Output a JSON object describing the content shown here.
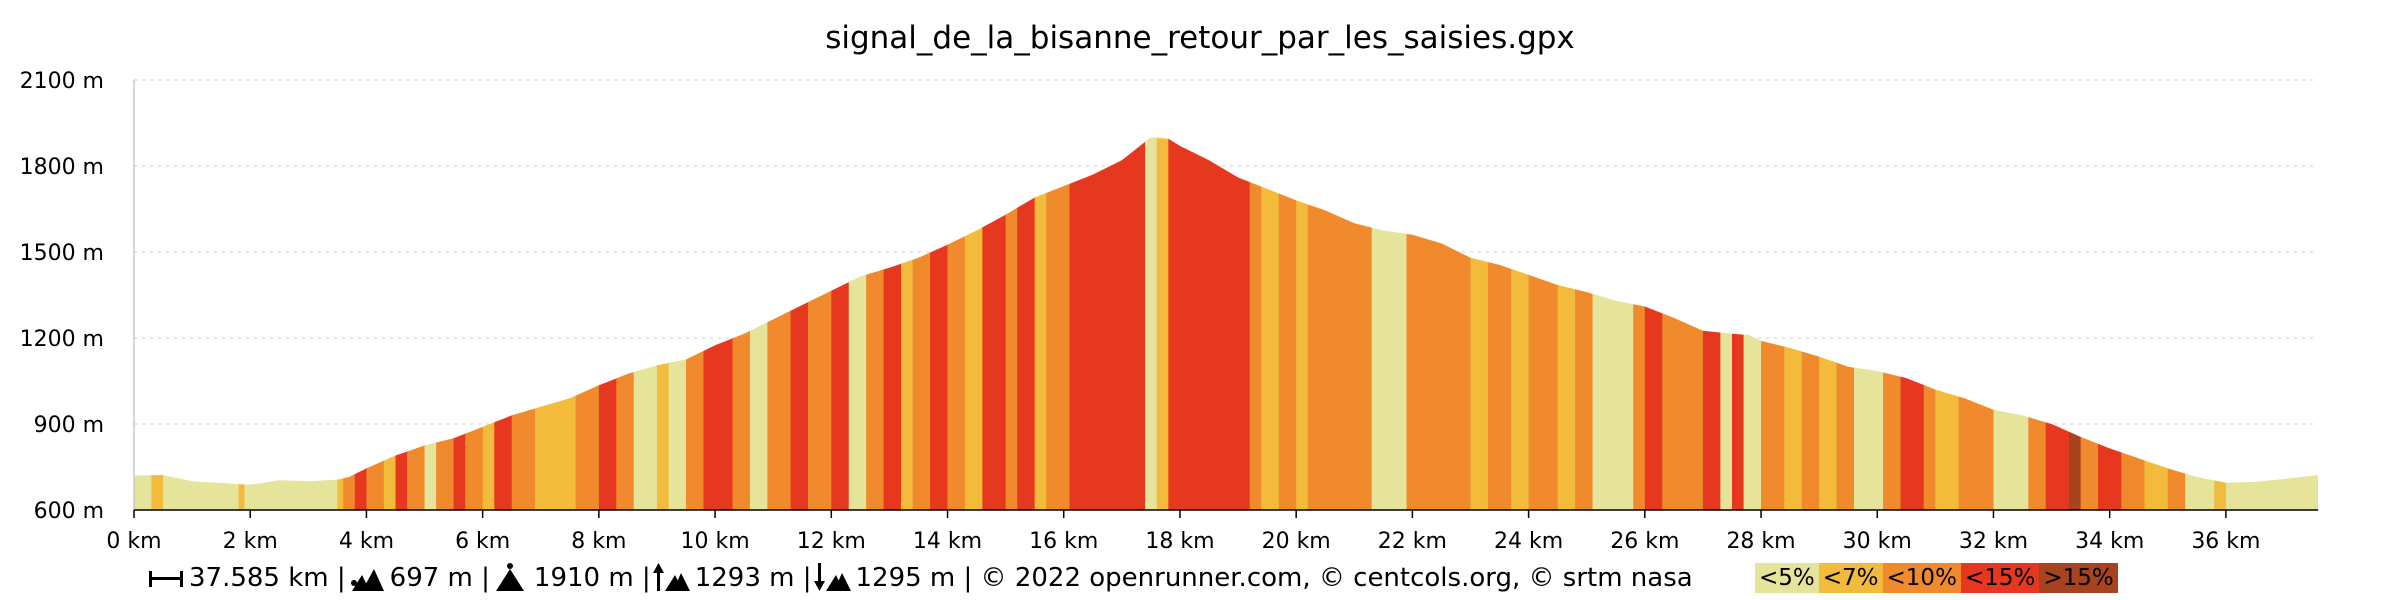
{
  "chart_data": {
    "type": "area",
    "title": "signal_de_la_bisanne_retour_par_les_saisies.gpx",
    "xlabel": "",
    "ylabel": "",
    "x_unit": "km",
    "y_unit": "m",
    "xlim": [
      0,
      37.585
    ],
    "ylim": [
      600,
      2100
    ],
    "x_ticks": [
      "0 km",
      "2 km",
      "4 km",
      "6 km",
      "8 km",
      "10 km",
      "12 km",
      "14 km",
      "16 km",
      "18 km",
      "20 km",
      "22 km",
      "24 km",
      "26 km",
      "28 km",
      "30 km",
      "32 km",
      "34 km",
      "36 km"
    ],
    "y_ticks": [
      "600 m",
      "900 m",
      "1200 m",
      "1500 m",
      "1800 m",
      "2100 m"
    ],
    "grid": true,
    "profile": [
      [
        0,
        720
      ],
      [
        0.5,
        722
      ],
      [
        1,
        700
      ],
      [
        2,
        688
      ],
      [
        2.5,
        704
      ],
      [
        3,
        700
      ],
      [
        3.5,
        706
      ],
      [
        3.7,
        715
      ],
      [
        4,
        745
      ],
      [
        4.5,
        790
      ],
      [
        5,
        825
      ],
      [
        5.5,
        850
      ],
      [
        6,
        890
      ],
      [
        6.5,
        930
      ],
      [
        7,
        960
      ],
      [
        7.5,
        990
      ],
      [
        8,
        1035
      ],
      [
        8.5,
        1075
      ],
      [
        9,
        1105
      ],
      [
        9.5,
        1125
      ],
      [
        10,
        1175
      ],
      [
        10.5,
        1215
      ],
      [
        11,
        1265
      ],
      [
        11.5,
        1315
      ],
      [
        12,
        1365
      ],
      [
        12.5,
        1415
      ],
      [
        13,
        1445
      ],
      [
        13.5,
        1480
      ],
      [
        14,
        1525
      ],
      [
        14.5,
        1575
      ],
      [
        15,
        1630
      ],
      [
        15.5,
        1690
      ],
      [
        16,
        1730
      ],
      [
        16.5,
        1770
      ],
      [
        17,
        1820
      ],
      [
        17.5,
        1900
      ],
      [
        17.8,
        1895
      ],
      [
        18,
        1870
      ],
      [
        18.5,
        1820
      ],
      [
        19,
        1760
      ],
      [
        19.5,
        1720
      ],
      [
        20,
        1680
      ],
      [
        20.5,
        1645
      ],
      [
        21,
        1600
      ],
      [
        21.5,
        1575
      ],
      [
        22,
        1560
      ],
      [
        22.5,
        1530
      ],
      [
        23,
        1480
      ],
      [
        23.5,
        1455
      ],
      [
        24,
        1420
      ],
      [
        24.5,
        1385
      ],
      [
        25,
        1360
      ],
      [
        25.5,
        1330
      ],
      [
        26,
        1310
      ],
      [
        26.5,
        1270
      ],
      [
        27,
        1225
      ],
      [
        27.5,
        1215
      ],
      [
        27.8,
        1210
      ],
      [
        28,
        1190
      ],
      [
        28.5,
        1165
      ],
      [
        29,
        1135
      ],
      [
        29.5,
        1100
      ],
      [
        30,
        1085
      ],
      [
        30.5,
        1060
      ],
      [
        31,
        1020
      ],
      [
        31.5,
        990
      ],
      [
        32,
        950
      ],
      [
        32.5,
        930
      ],
      [
        33,
        900
      ],
      [
        33.5,
        855
      ],
      [
        34,
        815
      ],
      [
        34.5,
        780
      ],
      [
        35,
        745
      ],
      [
        35.5,
        715
      ],
      [
        36,
        695
      ],
      [
        36.5,
        698
      ],
      [
        37,
        708
      ],
      [
        37.585,
        722
      ]
    ],
    "grade_bands": [
      [
        0,
        0.3,
        "a"
      ],
      [
        0.3,
        0.5,
        "b"
      ],
      [
        0.5,
        1.8,
        "a"
      ],
      [
        1.8,
        1.9,
        "b"
      ],
      [
        1.9,
        3.5,
        "a"
      ],
      [
        3.5,
        3.6,
        "b"
      ],
      [
        3.6,
        3.8,
        "c"
      ],
      [
        3.8,
        4.0,
        "d"
      ],
      [
        4.0,
        4.3,
        "c"
      ],
      [
        4.3,
        4.5,
        "b"
      ],
      [
        4.5,
        4.7,
        "d"
      ],
      [
        4.7,
        5.0,
        "c"
      ],
      [
        5.0,
        5.2,
        "a"
      ],
      [
        5.2,
        5.5,
        "c"
      ],
      [
        5.5,
        5.7,
        "d"
      ],
      [
        5.7,
        6.0,
        "c"
      ],
      [
        6.0,
        6.2,
        "b"
      ],
      [
        6.2,
        6.5,
        "d"
      ],
      [
        6.5,
        6.9,
        "c"
      ],
      [
        6.9,
        7.3,
        "b"
      ],
      [
        7.3,
        7.6,
        "b"
      ],
      [
        7.6,
        8.0,
        "c"
      ],
      [
        8.0,
        8.3,
        "d"
      ],
      [
        8.3,
        8.6,
        "c"
      ],
      [
        8.6,
        9.0,
        "a"
      ],
      [
        9.0,
        9.2,
        "b"
      ],
      [
        9.2,
        9.5,
        "a"
      ],
      [
        9.5,
        9.8,
        "c"
      ],
      [
        9.8,
        10.3,
        "d"
      ],
      [
        10.3,
        10.6,
        "c"
      ],
      [
        10.6,
        10.9,
        "a"
      ],
      [
        10.9,
        11.3,
        "c"
      ],
      [
        11.3,
        11.6,
        "d"
      ],
      [
        11.6,
        12.0,
        "c"
      ],
      [
        12.0,
        12.3,
        "d"
      ],
      [
        12.3,
        12.6,
        "a"
      ],
      [
        12.6,
        12.9,
        "c"
      ],
      [
        12.9,
        13.2,
        "d"
      ],
      [
        13.2,
        13.4,
        "b"
      ],
      [
        13.4,
        13.7,
        "c"
      ],
      [
        13.7,
        14.0,
        "d"
      ],
      [
        14.0,
        14.3,
        "c"
      ],
      [
        14.3,
        14.6,
        "b"
      ],
      [
        14.6,
        15.0,
        "d"
      ],
      [
        15.0,
        15.2,
        "c"
      ],
      [
        15.2,
        15.5,
        "d"
      ],
      [
        15.5,
        15.7,
        "b"
      ],
      [
        15.7,
        16.1,
        "c"
      ],
      [
        16.1,
        17.4,
        "d"
      ],
      [
        17.4,
        17.6,
        "a"
      ],
      [
        17.6,
        17.8,
        "b"
      ],
      [
        17.8,
        19.2,
        "d"
      ],
      [
        19.2,
        19.4,
        "c"
      ],
      [
        19.4,
        19.7,
        "b"
      ],
      [
        19.7,
        20.0,
        "c"
      ],
      [
        20.0,
        20.2,
        "b"
      ],
      [
        20.2,
        21.3,
        "c"
      ],
      [
        21.3,
        21.9,
        "a"
      ],
      [
        21.9,
        23.0,
        "c"
      ],
      [
        23.0,
        23.3,
        "b"
      ],
      [
        23.3,
        23.7,
        "c"
      ],
      [
        23.7,
        24.0,
        "b"
      ],
      [
        24.0,
        24.5,
        "c"
      ],
      [
        24.5,
        24.8,
        "b"
      ],
      [
        24.8,
        25.1,
        "c"
      ],
      [
        25.1,
        25.8,
        "a"
      ],
      [
        25.8,
        26.0,
        "c"
      ],
      [
        26.0,
        26.3,
        "d"
      ],
      [
        26.3,
        27.0,
        "c"
      ],
      [
        27.0,
        27.3,
        "d"
      ],
      [
        27.3,
        27.5,
        "a"
      ],
      [
        27.5,
        27.7,
        "d"
      ],
      [
        27.7,
        28.0,
        "a"
      ],
      [
        28.0,
        28.4,
        "c"
      ],
      [
        28.4,
        28.7,
        "b"
      ],
      [
        28.7,
        29.0,
        "c"
      ],
      [
        29.0,
        29.3,
        "b"
      ],
      [
        29.3,
        29.6,
        "c"
      ],
      [
        29.6,
        30.1,
        "a"
      ],
      [
        30.1,
        30.4,
        "c"
      ],
      [
        30.4,
        30.8,
        "d"
      ],
      [
        30.8,
        31.0,
        "c"
      ],
      [
        31.0,
        31.4,
        "b"
      ],
      [
        31.4,
        32.0,
        "c"
      ],
      [
        32.0,
        32.6,
        "a"
      ],
      [
        32.6,
        32.9,
        "c"
      ],
      [
        32.9,
        33.3,
        "d"
      ],
      [
        33.3,
        33.5,
        "e"
      ],
      [
        33.5,
        33.8,
        "c"
      ],
      [
        33.8,
        34.2,
        "d"
      ],
      [
        34.2,
        34.6,
        "c"
      ],
      [
        34.6,
        35.0,
        "b"
      ],
      [
        35.0,
        35.3,
        "c"
      ],
      [
        35.3,
        35.8,
        "a"
      ],
      [
        35.8,
        36.0,
        "b"
      ],
      [
        36.0,
        37.585,
        "a"
      ]
    ],
    "legend": [
      {
        "key": "a",
        "label": "<5%",
        "color": "#e6e39a"
      },
      {
        "key": "b",
        "label": "<7%",
        "color": "#f2bb3c"
      },
      {
        "key": "c",
        "label": "<10%",
        "color": "#f08a2c"
      },
      {
        "key": "d",
        "label": "<15%",
        "color": "#e6381e"
      },
      {
        "key": "e",
        "label": ">15%",
        "color": "#a8431f"
      }
    ]
  },
  "footer": {
    "distance": "37.585 km |",
    "min_alt": "697 m |",
    "max_alt": "1910 m |",
    "ascent": "1293 m |",
    "descent": "1295 m | © 2022 openrunner.com, © centcols.org, © srtm nasa"
  }
}
